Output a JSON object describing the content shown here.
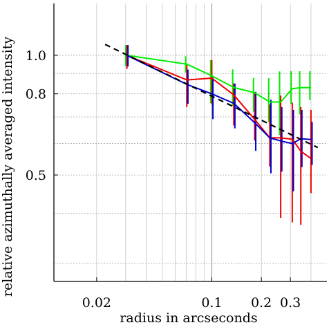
{
  "chart_data": {
    "type": "line",
    "title": "",
    "xlabel": "radius in arcseconds",
    "ylabel": "relative azimuthally  averaged intensity",
    "x_scale": "log",
    "y_scale": "log",
    "xlim": [
      0.011,
      0.5
    ],
    "ylim": [
      0.27,
      1.35
    ],
    "grid": true,
    "x_ticks": [
      {
        "value": 0.02,
        "label": "0.02"
      },
      {
        "value": 0.1,
        "label": "0.1"
      },
      {
        "value": 0.2,
        "label": "0.2"
      },
      {
        "value": 0.3,
        "label": "0.3"
      }
    ],
    "y_ticks": [
      {
        "value": 0.5,
        "label": "0.5"
      },
      {
        "value": 0.8,
        "label": "0.8"
      },
      {
        "value": 1.0,
        "label": "1.0"
      }
    ],
    "series": [
      {
        "color": "#00ee00",
        "x": [
          0.0305,
          0.0705,
          0.1,
          0.136,
          0.182,
          0.225,
          0.262,
          0.308,
          0.347,
          0.4
        ],
        "y": [
          1.0,
          0.95,
          0.888,
          0.83,
          0.805,
          0.763,
          0.763,
          0.824,
          0.829,
          0.829
        ],
        "err_low": [
          0.94,
          0.905,
          0.758,
          0.745,
          0.721,
          0.679,
          0.63,
          0.754,
          0.71,
          0.771
        ],
        "err_high": [
          1.061,
          0.995,
          0.972,
          0.922,
          0.878,
          0.876,
          0.911,
          0.912,
          0.912,
          0.912
        ]
      },
      {
        "color": "#ee0000",
        "x": [
          0.0305,
          0.0705,
          0.1,
          0.136,
          0.182,
          0.225,
          0.262,
          0.308,
          0.347,
          0.4
        ],
        "y": [
          1.0,
          0.867,
          0.876,
          0.795,
          0.69,
          0.62,
          0.62,
          0.615,
          0.574,
          0.55
        ],
        "err_low": [
          0.924,
          0.741,
          0.753,
          0.666,
          0.61,
          0.525,
          0.39,
          0.38,
          0.375,
          0.45
        ],
        "err_high": [
          1.061,
          0.945,
          0.972,
          0.85,
          0.809,
          0.752,
          0.792,
          0.76,
          0.741,
          0.729
        ]
      },
      {
        "color": "#0000cc",
        "x": [
          0.0305,
          0.0705,
          0.1,
          0.136,
          0.182,
          0.225,
          0.262,
          0.308,
          0.347,
          0.4
        ],
        "y": [
          1.0,
          0.845,
          0.8,
          0.757,
          0.677,
          0.62,
          0.609,
          0.6,
          0.617,
          0.614
        ],
        "err_low": [
          0.937,
          0.755,
          0.691,
          0.655,
          0.575,
          0.505,
          0.51,
          0.455,
          0.523,
          0.53
        ],
        "err_high": [
          1.061,
          0.921,
          0.879,
          0.849,
          0.809,
          0.773,
          0.741,
          0.729,
          0.729,
          0.68
        ]
      },
      {
        "color": "#000000",
        "style": "dashed",
        "x": [
          0.0225,
          0.44
        ],
        "y": [
          1.065,
          0.586
        ]
      }
    ]
  }
}
